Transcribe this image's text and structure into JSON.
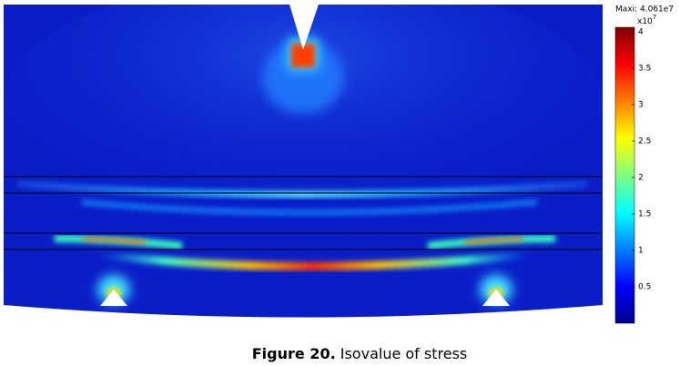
{
  "figure": {
    "max_label": "Maxi: 4.061e7",
    "scale_base": "x10",
    "scale_exponent": "7",
    "colorbar": {
      "ylim": [
        0,
        4.061
      ],
      "ticks": [
        0.5,
        1,
        1.5,
        2,
        2.5,
        3,
        3.5,
        4
      ]
    },
    "caption": {
      "number": "Figure 20.",
      "text": "Isovalue of stress"
    }
  }
}
